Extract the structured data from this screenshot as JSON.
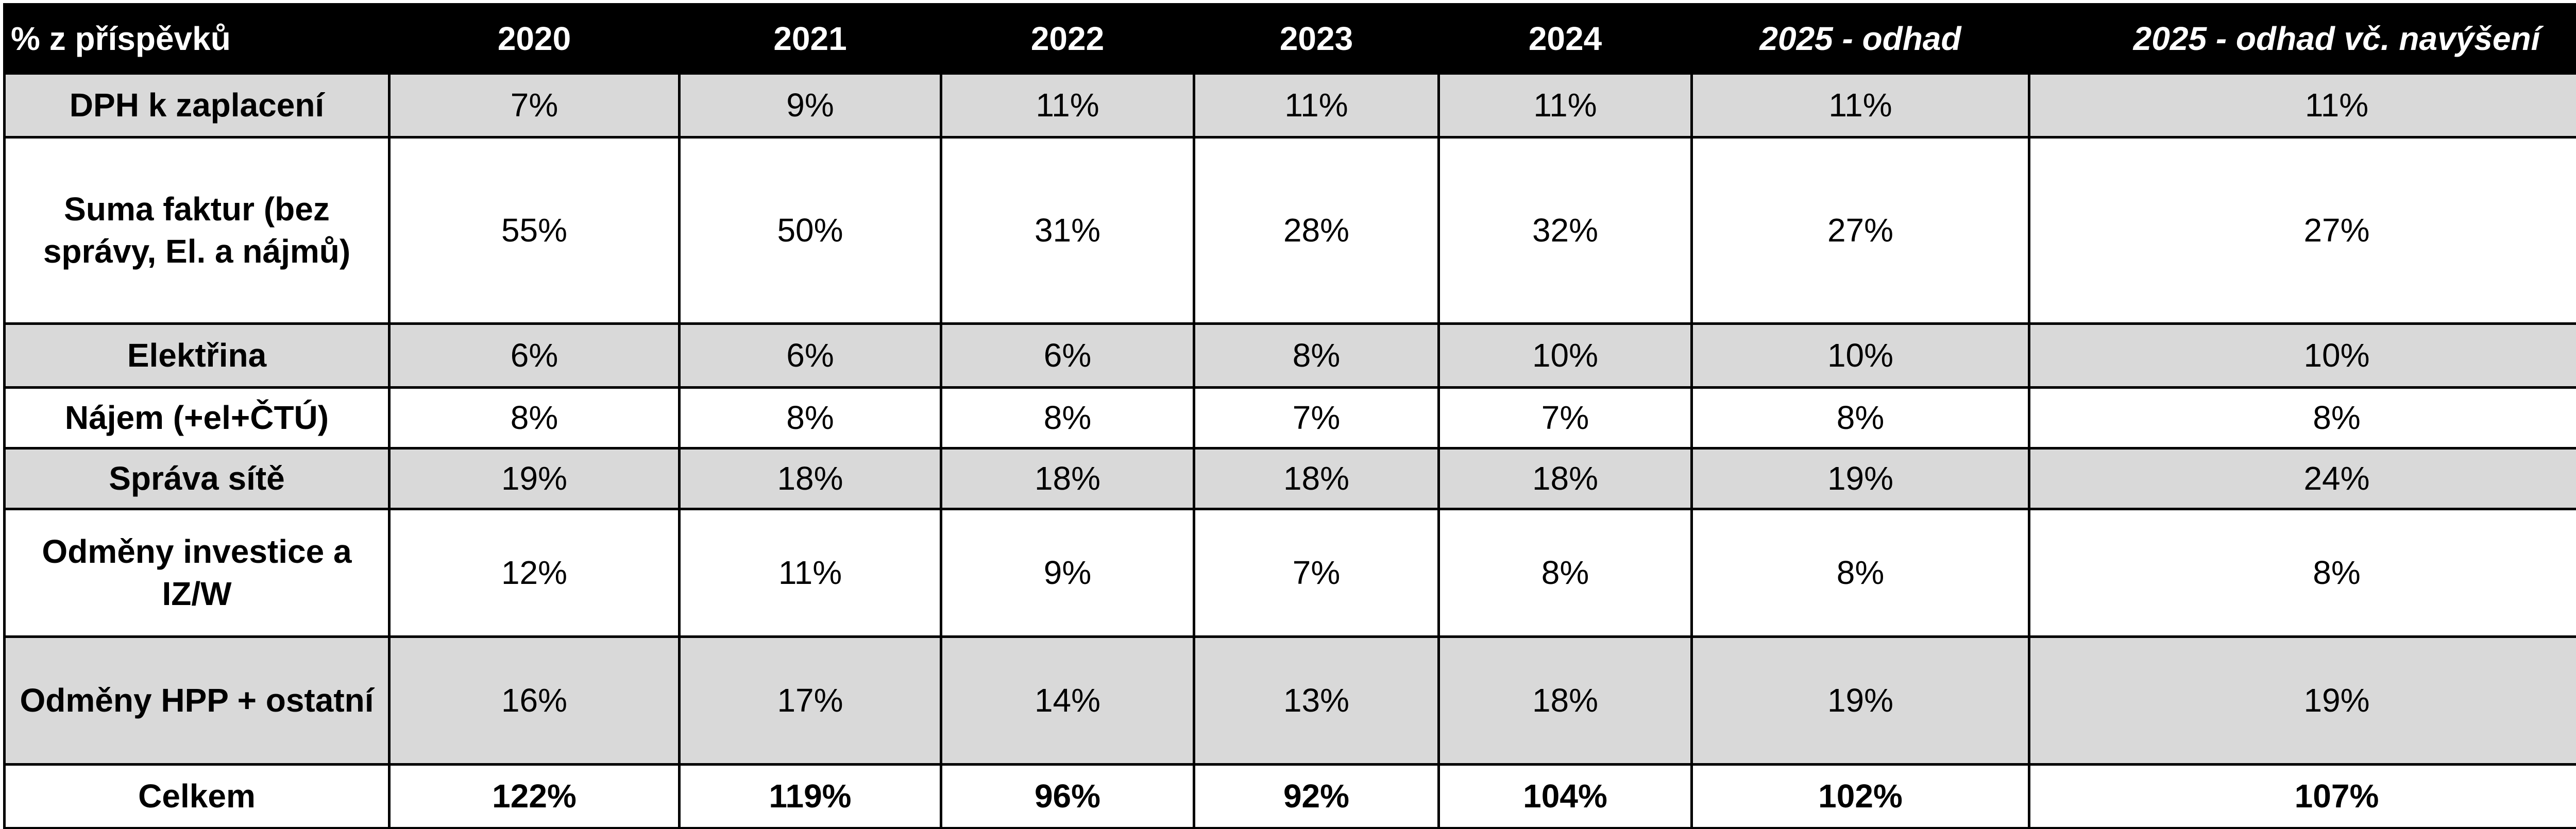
{
  "table": {
    "header": [
      "% z příspěvků",
      "2020",
      "2021",
      "2022",
      "2023",
      "2024",
      "2025 - odhad",
      "2025 - odhad vč. navýšení"
    ],
    "rows": [
      [
        "DPH k zaplacení",
        "7%",
        "9%",
        "11%",
        "11%",
        "11%",
        "11%",
        "11%"
      ],
      [
        "Suma faktur (bez správy, El. a nájmů)",
        "55%",
        "50%",
        "31%",
        "28%",
        "32%",
        "27%",
        "27%"
      ],
      [
        "Elektřina",
        "6%",
        "6%",
        "6%",
        "8%",
        "10%",
        "10%",
        "10%"
      ],
      [
        "Nájem (+el+ČTÚ)",
        "8%",
        "8%",
        "8%",
        "7%",
        "7%",
        "8%",
        "8%"
      ],
      [
        "Správa sítě",
        "19%",
        "18%",
        "18%",
        "18%",
        "18%",
        "19%",
        "24%"
      ],
      [
        "Odměny investice a IZ/W",
        "12%",
        "11%",
        "9%",
        "7%",
        "8%",
        "8%",
        "8%"
      ],
      [
        "Odměny HPP + ostatní",
        "16%",
        "17%",
        "14%",
        "13%",
        "18%",
        "19%",
        "19%"
      ],
      [
        "Celkem",
        "122%",
        "119%",
        "96%",
        "92%",
        "104%",
        "102%",
        "107%"
      ]
    ]
  }
}
